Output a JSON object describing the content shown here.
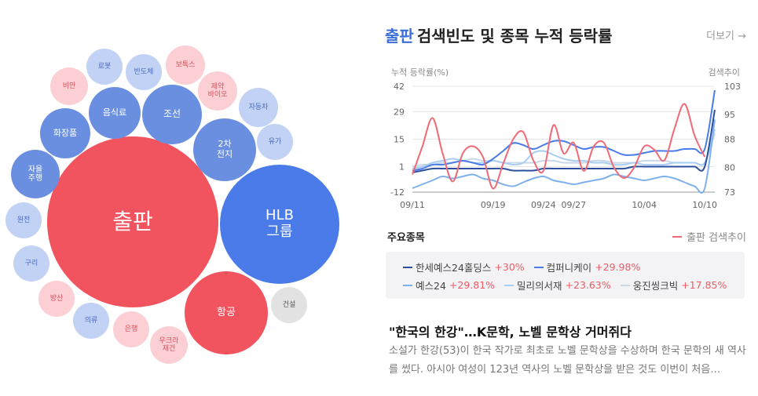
{
  "bubbles": [
    {
      "label": "출판",
      "color": "#f2545f",
      "text_color": "#ffffff"
    },
    {
      "label": "HLB\n그룹",
      "color": "#4a7be8",
      "text_color": "#ffffff"
    },
    {
      "label": "항공",
      "color": "#f2545f",
      "text_color": "#ffffff"
    },
    {
      "label": "조선",
      "color": "#6a8fe0",
      "text_color": "#ffffff"
    },
    {
      "label": "2차\n전지",
      "color": "#6a8fe0",
      "text_color": "#ffffff"
    },
    {
      "label": "음식료",
      "color": "#6a8fe0",
      "text_color": "#ffffff"
    },
    {
      "label": "화장품",
      "color": "#6a8fe0",
      "text_color": "#ffffff"
    },
    {
      "label": "자율\n주행",
      "color": "#6a8fe0",
      "text_color": "#ffffff"
    },
    {
      "label": "로봇",
      "color": "#c2d2f5",
      "text_color": "#4a6cc0"
    },
    {
      "label": "반도체",
      "color": "#c2d2f5",
      "text_color": "#4a6cc0"
    },
    {
      "label": "보톡스",
      "color": "#fbcfd3",
      "text_color": "#d9505c"
    },
    {
      "label": "비만",
      "color": "#fbcfd3",
      "text_color": "#d9505c"
    },
    {
      "label": "제약\n바이오",
      "color": "#fbcfd3",
      "text_color": "#d9505c"
    },
    {
      "label": "자동차",
      "color": "#c2d2f5",
      "text_color": "#4a6cc0"
    },
    {
      "label": "유가",
      "color": "#c2d2f5",
      "text_color": "#4a6cc0"
    },
    {
      "label": "원전",
      "color": "#c2d2f5",
      "text_color": "#4a6cc0"
    },
    {
      "label": "구리",
      "color": "#c2d2f5",
      "text_color": "#4a6cc0"
    },
    {
      "label": "방산",
      "color": "#fbcfd3",
      "text_color": "#d9505c"
    },
    {
      "label": "의류",
      "color": "#c2d2f5",
      "text_color": "#4a6cc0"
    },
    {
      "label": "은행",
      "color": "#fbcfd3",
      "text_color": "#d9505c"
    },
    {
      "label": "우크라\n재건",
      "color": "#fbcfd3",
      "text_color": "#d9505c"
    },
    {
      "label": "건설",
      "color": "#e2e2e2",
      "text_color": "#555555"
    }
  ],
  "panel": {
    "keyword": "출판",
    "title": "검색빈도 및 종목 누적 등락률",
    "more": "더보기 →"
  },
  "chart_data": {
    "type": "line",
    "ylabel": "누적 등락률(%)",
    "y2label": "검색추이",
    "y_ticks": [
      42,
      29,
      15,
      1,
      -12
    ],
    "ylim": [
      -12,
      42
    ],
    "y2_ticks": [
      103,
      95,
      88,
      80,
      73
    ],
    "y2lim": [
      73,
      103
    ],
    "grid": true,
    "x": [
      "09/11",
      "09/12",
      "09/13",
      "09/14",
      "09/15",
      "09/16",
      "09/17",
      "09/18",
      "09/19",
      "09/20",
      "09/21",
      "09/22",
      "09/23",
      "09/24",
      "09/25",
      "09/26",
      "09/27",
      "09/28",
      "09/29",
      "09/30",
      "10/01",
      "10/02",
      "10/03",
      "10/04",
      "10/05",
      "10/06",
      "10/07",
      "10/08",
      "10/09",
      "10/10",
      "10/11"
    ],
    "x_labels": [
      "09/11",
      "09/19",
      "09/24",
      "09/27",
      "10/04",
      "10/10"
    ],
    "series": [
      {
        "name": "한세예스24홀딩스",
        "change": "+30%",
        "color": "#2b4f9e",
        "axis": "left",
        "values": [
          -2,
          -1,
          0,
          0,
          0,
          0,
          0,
          0,
          0,
          0,
          -1,
          -1,
          -1,
          0,
          0,
          0,
          0,
          0,
          0,
          0,
          0,
          0,
          1,
          1,
          1,
          1,
          1,
          1,
          1,
          1,
          30
        ]
      },
      {
        "name": "컴퍼니케이",
        "change": "+29.98%",
        "color": "#4a7be8",
        "axis": "left",
        "values": [
          -1,
          0,
          2,
          2,
          3,
          4,
          3,
          2,
          5,
          9,
          13,
          12,
          10,
          12,
          14,
          14,
          12,
          10,
          11,
          11,
          9,
          7,
          7,
          8,
          9,
          9,
          9,
          10,
          10,
          10,
          40
        ]
      },
      {
        "name": "예스24",
        "change": "+29.81%",
        "color": "#7fb0ee",
        "axis": "left",
        "values": [
          -10,
          -8,
          -6,
          -4,
          -5,
          -4,
          -3,
          -5,
          -6,
          -8,
          -9,
          -7,
          -5,
          -4,
          -6,
          -7,
          -8,
          -7,
          -6,
          -5,
          -3,
          -4,
          -5,
          -6,
          -5,
          -4,
          -5,
          -7,
          -9,
          -10,
          25
        ]
      },
      {
        "name": "밀리의서재",
        "change": "+23.63%",
        "color": "#a8cdf3",
        "axis": "left",
        "values": [
          0,
          1,
          3,
          4,
          5,
          4,
          3,
          3,
          4,
          3,
          2,
          3,
          8,
          9,
          7,
          5,
          4,
          4,
          3,
          3,
          2,
          2,
          3,
          2,
          2,
          2,
          3,
          3,
          3,
          3,
          20
        ]
      },
      {
        "name": "웅진씽크빅",
        "change": "+17.85%",
        "color": "#c8d8e8",
        "axis": "left",
        "values": [
          1,
          2,
          2,
          3,
          3,
          4,
          5,
          4,
          4,
          3,
          3,
          3,
          3,
          4,
          4,
          3,
          3,
          3,
          4,
          4,
          3,
          3,
          3,
          4,
          4,
          4,
          3,
          3,
          3,
          3,
          18
        ]
      },
      {
        "name": "출판 검색추이",
        "color": "#ef6a75",
        "axis": "right",
        "values": [
          78,
          86,
          94,
          84,
          76,
          84,
          86,
          83,
          74,
          81,
          88,
          90,
          82,
          79,
          92,
          84,
          87,
          79,
          86,
          87,
          80,
          77,
          80,
          86,
          85,
          82,
          91,
          98,
          89,
          83,
          null
        ]
      }
    ]
  },
  "stocks": {
    "heading": "주요종목",
    "legend_label": "출판 검색추이",
    "legend_color": "#ef6a75",
    "row1": [
      {
        "name": "한세예스24홀딩스",
        "change": "+30%",
        "color": "#2b4f9e"
      },
      {
        "name": "컴퍼니케이",
        "change": "+29.98%",
        "color": "#4a7be8"
      }
    ],
    "row2": [
      {
        "name": "예스24",
        "change": "+29.81%",
        "color": "#7fb0ee"
      },
      {
        "name": "밀리의서재",
        "change": "+23.63%",
        "color": "#a8cdf3"
      },
      {
        "name": "웅진씽크빅",
        "change": "+17.85%",
        "color": "#c8d8e8"
      }
    ]
  },
  "news": {
    "title": "\"한국의 한강\"…K문학, 노벨 문학상 거머쥐다",
    "body": "소설가 한강(53)이 한국 작가로 최초로 노벨 문학상을 수상하며 한국 문학의 새 역사를 썼다. 아시아 여성이 123년 역사의 노벨 문학상을 받은 것도 이번이 처음…"
  }
}
